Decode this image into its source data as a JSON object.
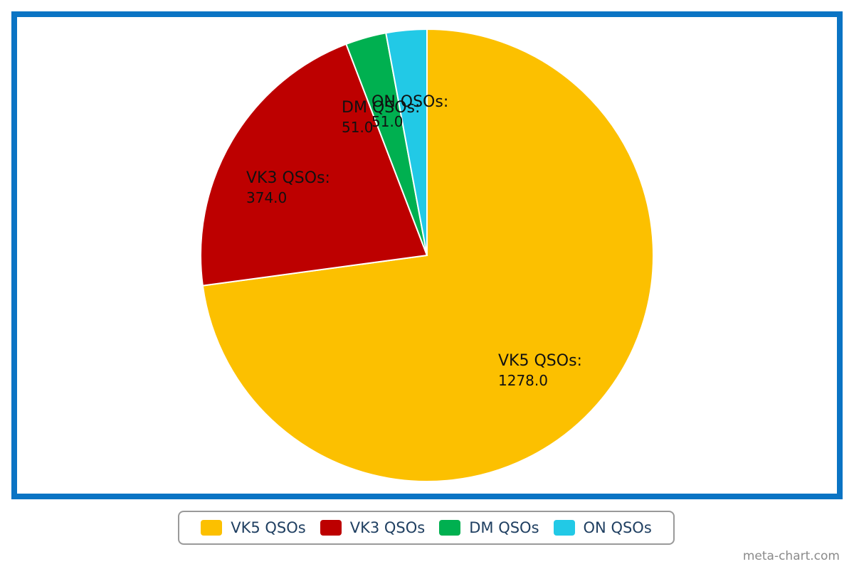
{
  "chart_data": {
    "type": "pie",
    "title": "",
    "slices": [
      {
        "name": "VK5 QSOs",
        "value": 1278.0,
        "value_label": "1278.0",
        "color": "#fcc000"
      },
      {
        "name": "VK3 QSOs",
        "value": 374.0,
        "value_label": "374.0",
        "color": "#bd0000"
      },
      {
        "name": "DM QSOs",
        "value": 51.0,
        "value_label": "51.0",
        "color": "#00b050"
      },
      {
        "name": "ON QSOs",
        "value": 51.0,
        "value_label": "51.0",
        "color": "#22c9e6"
      }
    ],
    "start_angle": "12 o'clock",
    "direction": "clockwise",
    "label_suffix": ":",
    "legend": {
      "placement": "bottom-center",
      "items": [
        "VK5 QSOs",
        "VK3 QSOs",
        "DM QSOs",
        "ON QSOs"
      ]
    }
  },
  "frame_color": "#0a74c4",
  "credit": "meta-chart.com"
}
